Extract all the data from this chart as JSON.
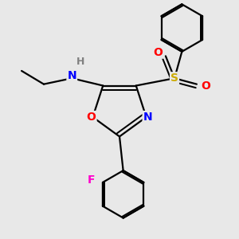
{
  "background_color": "#e8e8e8",
  "atom_colors": {
    "N": "#0000ff",
    "O": "#ff0000",
    "S": "#ccaa00",
    "F": "#ff00cc",
    "C": "#000000",
    "H": "#808080"
  },
  "bond_color": "#000000",
  "bond_width": 1.6,
  "figsize": [
    3.0,
    3.0
  ],
  "dpi": 100
}
